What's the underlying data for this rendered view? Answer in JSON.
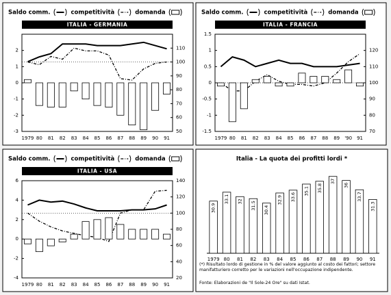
{
  "chart_data": [
    {
      "type": "combo",
      "subtitle": "ITALIA - GERMANIA",
      "categories": [
        "1979",
        "80",
        "81",
        "82",
        "83",
        "84",
        "85",
        "86",
        "87",
        "88",
        "89",
        "90",
        "91"
      ],
      "series": [
        {
          "name": "Saldo comm.",
          "style": "solid",
          "color": "#000000",
          "axis": "y",
          "values": [
            1.3,
            1.6,
            1.8,
            2.4,
            2.4,
            2.4,
            2.3,
            2.3,
            2.3,
            2.4,
            2.5,
            2.3,
            2.1
          ]
        },
        {
          "name": "competitività",
          "style": "dashed",
          "color": "#000000",
          "axis": "y2",
          "values": [
            100,
            98,
            104,
            102,
            110,
            108,
            108,
            105,
            88,
            87,
            95,
            99,
            100
          ]
        },
        {
          "name": "domanda",
          "style": "bar",
          "color": "#000000",
          "axis": "y",
          "values": [
            0.2,
            -1.4,
            -1.5,
            -1.5,
            -0.5,
            -1.0,
            -1.4,
            -1.5,
            -2.0,
            -2.6,
            -2.9,
            -1.7,
            -0.7
          ]
        }
      ],
      "ylim": [
        -3,
        3
      ],
      "yticks": [
        -3,
        -2,
        -1,
        0,
        1,
        2
      ],
      "y2lim": [
        50,
        120
      ],
      "y2ticks": [
        50,
        60,
        70,
        80,
        90,
        100,
        110
      ],
      "reference_line": 100
    },
    {
      "type": "combo",
      "subtitle": "ITALIA - FRANCIA",
      "categories": [
        "1979",
        "80",
        "81",
        "82",
        "83",
        "84",
        "85",
        "86",
        "87",
        "88",
        "89",
        "'90",
        "91"
      ],
      "series": [
        {
          "name": "Saldo comm.",
          "style": "solid",
          "color": "#000000",
          "axis": "y",
          "values": [
            0.5,
            0.8,
            0.7,
            0.5,
            0.6,
            0.7,
            0.6,
            0.6,
            0.5,
            0.5,
            0.5,
            0.55,
            0.6
          ]
        },
        {
          "name": "competitività",
          "style": "dashed",
          "color": "#000000",
          "axis": "y2",
          "values": [
            100,
            95,
            95,
            101,
            105,
            101,
            99,
            99,
            98,
            100,
            106,
            113,
            118
          ]
        },
        {
          "name": "domanda",
          "style": "bar",
          "color": "#000000",
          "axis": "y",
          "values": [
            -0.1,
            -1.2,
            -0.8,
            0.1,
            0.2,
            -0.1,
            -0.1,
            0.3,
            0.2,
            0.2,
            0.1,
            0.4,
            -0.1
          ]
        }
      ],
      "ylim": [
        -1.5,
        1.5
      ],
      "yticks": [
        -1.5,
        -1,
        -0.5,
        0,
        0.5,
        1,
        1.5
      ],
      "y2lim": [
        70,
        130
      ],
      "y2ticks": [
        70,
        80,
        90,
        100,
        110,
        120
      ],
      "reference_line": 100
    },
    {
      "type": "combo",
      "subtitle": "ITALIA - USA",
      "categories": [
        "1979",
        "80",
        "81",
        "82",
        "83",
        "84",
        "85",
        "86",
        "87",
        "88",
        "89",
        "90",
        "91"
      ],
      "series": [
        {
          "name": "Saldo comm.",
          "style": "solid",
          "color": "#000000",
          "axis": "y",
          "values": [
            3.5,
            4.0,
            3.8,
            3.9,
            3.6,
            3.2,
            2.9,
            2.9,
            2.9,
            3.0,
            3.0,
            3.1,
            3.5
          ]
        },
        {
          "name": "competitività",
          "style": "dashed",
          "color": "#000000",
          "axis": "y2",
          "values": [
            100,
            90,
            83,
            78,
            75,
            72,
            70,
            65,
            100,
            104,
            104,
            127,
            128
          ]
        },
        {
          "name": "domanda",
          "style": "bar",
          "color": "#000000",
          "axis": "y",
          "values": [
            -0.5,
            -1.3,
            -0.7,
            -0.3,
            0.5,
            1.8,
            2.0,
            2.2,
            1.5,
            1.0,
            1.0,
            1.0,
            0.5
          ]
        }
      ],
      "ylim": [
        -4,
        6
      ],
      "yticks": [
        -4,
        -2,
        0,
        2,
        4,
        6
      ],
      "y2lim": [
        20,
        140
      ],
      "y2ticks": [
        20,
        40,
        60,
        80,
        100,
        120,
        140
      ],
      "reference_line": 100
    },
    {
      "type": "bar",
      "title": "Italia - La quota dei profitti lordi *",
      "categories": [
        "1979",
        "80",
        "81",
        "82",
        "83",
        "84",
        "85",
        "86",
        "87",
        "88",
        "89",
        "90",
        "91"
      ],
      "values": [
        30.9,
        33.1,
        32,
        31.5,
        30.4,
        32.9,
        33.6,
        35.1,
        35.8,
        37,
        36,
        33.7,
        31.3
      ],
      "color": "#000000",
      "ylim": [
        18,
        40
      ],
      "notes": [
        "(*) Risultato lordo di gestione in % del valore aggiunto al costo dei fattori; settore manifatturiero corretto per le variazioni nell'occupazione indipendente.",
        "Fonte: Elaborazioni de \"Il Sole-24 Ore\" su dati Istat."
      ]
    }
  ]
}
